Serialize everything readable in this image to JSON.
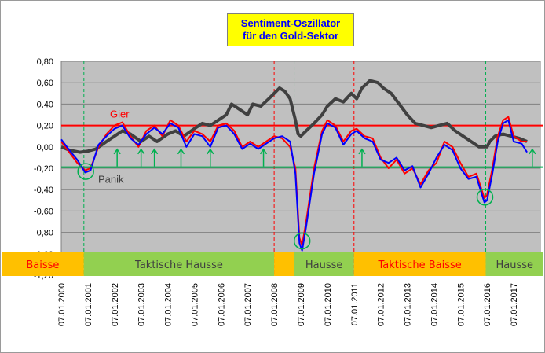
{
  "chart_data": {
    "type": "line",
    "title_lines": [
      "Sentiment-Oszillator",
      "für den Gold-Sektor"
    ],
    "y_ticks": [
      "0,80",
      "0,60",
      "0,40",
      "0,20",
      "0,00",
      "-0,20",
      "-0,40",
      "-0,60",
      "-0,80",
      "-1,00",
      "-1,20"
    ],
    "ylim": [
      -1.2,
      0.8
    ],
    "xlim": [
      2000.0,
      2018.0
    ],
    "x_tick_years": [
      2000,
      2001,
      2002,
      2003,
      2004,
      2005,
      2006,
      2007,
      2008,
      2009,
      2010,
      2011,
      2012,
      2013,
      2014,
      2015,
      2016,
      2017
    ],
    "x_ticks": [
      "07.01.2000",
      "07.01.2001",
      "07.01.2002",
      "07.01.2003",
      "07.01.2004",
      "07.01.2005",
      "07.01.2006",
      "07.01.2007",
      "07.01.2008",
      "07.01.2009",
      "07.01.2010",
      "07.01.2011",
      "07.01.2012",
      "07.01.2013",
      "07.01.2014",
      "07.01.2015",
      "07.01.2016",
      "07.01.2017"
    ],
    "grid": "horizontal",
    "reference_lines": [
      {
        "label": "Gier",
        "value": 0.2,
        "color": "#ff0000"
      },
      {
        "label": "Panik",
        "value": -0.19,
        "color": "#00b050"
      }
    ],
    "series": [
      {
        "color": "#404040",
        "points": [
          [
            2000.0,
            0.0
          ],
          [
            2000.3,
            -0.03
          ],
          [
            2000.7,
            -0.05
          ],
          [
            2001.0,
            -0.04
          ],
          [
            2001.3,
            -0.02
          ],
          [
            2001.7,
            0.05
          ],
          [
            2002.0,
            0.1
          ],
          [
            2002.3,
            0.15
          ],
          [
            2002.6,
            0.12
          ],
          [
            2003.0,
            0.05
          ],
          [
            2003.3,
            0.1
          ],
          [
            2003.6,
            0.05
          ],
          [
            2004.0,
            0.12
          ],
          [
            2004.3,
            0.15
          ],
          [
            2004.6,
            0.1
          ],
          [
            2005.0,
            0.17
          ],
          [
            2005.3,
            0.22
          ],
          [
            2005.6,
            0.2
          ],
          [
            2005.9,
            0.25
          ],
          [
            2006.2,
            0.3
          ],
          [
            2006.4,
            0.4
          ],
          [
            2006.7,
            0.35
          ],
          [
            2007.0,
            0.3
          ],
          [
            2007.2,
            0.4
          ],
          [
            2007.5,
            0.38
          ],
          [
            2007.8,
            0.45
          ],
          [
            2008.0,
            0.5
          ],
          [
            2008.2,
            0.55
          ],
          [
            2008.4,
            0.52
          ],
          [
            2008.6,
            0.45
          ],
          [
            2008.8,
            0.25
          ],
          [
            2008.9,
            0.12
          ],
          [
            2009.0,
            0.1
          ],
          [
            2009.2,
            0.15
          ],
          [
            2009.5,
            0.22
          ],
          [
            2009.8,
            0.3
          ],
          [
            2010.0,
            0.38
          ],
          [
            2010.3,
            0.45
          ],
          [
            2010.6,
            0.42
          ],
          [
            2010.9,
            0.5
          ],
          [
            2011.1,
            0.45
          ],
          [
            2011.3,
            0.55
          ],
          [
            2011.6,
            0.62
          ],
          [
            2011.9,
            0.6
          ],
          [
            2012.1,
            0.55
          ],
          [
            2012.4,
            0.5
          ],
          [
            2012.7,
            0.4
          ],
          [
            2013.0,
            0.3
          ],
          [
            2013.3,
            0.22
          ],
          [
            2013.6,
            0.2
          ],
          [
            2013.9,
            0.18
          ],
          [
            2014.2,
            0.2
          ],
          [
            2014.5,
            0.22
          ],
          [
            2014.8,
            0.15
          ],
          [
            2015.1,
            0.1
          ],
          [
            2015.4,
            0.05
          ],
          [
            2015.7,
            0.0
          ],
          [
            2016.0,
            0.0
          ],
          [
            2016.1,
            0.05
          ],
          [
            2016.3,
            0.1
          ],
          [
            2016.6,
            0.12
          ],
          [
            2016.9,
            0.1
          ],
          [
            2017.2,
            0.08
          ],
          [
            2017.5,
            0.05
          ]
        ]
      },
      {
        "color": "#ff0000",
        "points": [
          [
            2000.0,
            0.05
          ],
          [
            2000.3,
            -0.05
          ],
          [
            2000.6,
            -0.15
          ],
          [
            2000.9,
            -0.22
          ],
          [
            2001.1,
            -0.2
          ],
          [
            2001.4,
            0.0
          ],
          [
            2001.7,
            0.12
          ],
          [
            2002.0,
            0.2
          ],
          [
            2002.3,
            0.23
          ],
          [
            2002.6,
            0.1
          ],
          [
            2002.9,
            0.0
          ],
          [
            2003.2,
            0.15
          ],
          [
            2003.5,
            0.2
          ],
          [
            2003.8,
            0.1
          ],
          [
            2004.1,
            0.25
          ],
          [
            2004.4,
            0.2
          ],
          [
            2004.7,
            0.05
          ],
          [
            2005.0,
            0.15
          ],
          [
            2005.3,
            0.12
          ],
          [
            2005.6,
            0.05
          ],
          [
            2005.9,
            0.2
          ],
          [
            2006.2,
            0.22
          ],
          [
            2006.5,
            0.15
          ],
          [
            2006.8,
            0.0
          ],
          [
            2007.1,
            0.05
          ],
          [
            2007.4,
            0.0
          ],
          [
            2007.7,
            0.05
          ],
          [
            2008.0,
            0.1
          ],
          [
            2008.3,
            0.08
          ],
          [
            2008.6,
            0.0
          ],
          [
            2008.8,
            -0.2
          ],
          [
            2008.95,
            -0.85
          ],
          [
            2009.05,
            -0.92
          ],
          [
            2009.2,
            -0.7
          ],
          [
            2009.5,
            -0.2
          ],
          [
            2009.8,
            0.15
          ],
          [
            2010.0,
            0.25
          ],
          [
            2010.3,
            0.2
          ],
          [
            2010.6,
            0.05
          ],
          [
            2010.9,
            0.15
          ],
          [
            2011.1,
            0.17
          ],
          [
            2011.4,
            0.1
          ],
          [
            2011.7,
            0.08
          ],
          [
            2012.0,
            -0.1
          ],
          [
            2012.3,
            -0.2
          ],
          [
            2012.6,
            -0.12
          ],
          [
            2012.9,
            -0.25
          ],
          [
            2013.2,
            -0.2
          ],
          [
            2013.5,
            -0.35
          ],
          [
            2013.8,
            -0.22
          ],
          [
            2014.1,
            -0.15
          ],
          [
            2014.4,
            0.05
          ],
          [
            2014.7,
            0.0
          ],
          [
            2015.0,
            -0.15
          ],
          [
            2015.3,
            -0.28
          ],
          [
            2015.6,
            -0.25
          ],
          [
            2015.9,
            -0.48
          ],
          [
            2016.0,
            -0.45
          ],
          [
            2016.2,
            -0.2
          ],
          [
            2016.4,
            0.1
          ],
          [
            2016.6,
            0.25
          ],
          [
            2016.8,
            0.28
          ],
          [
            2017.0,
            0.1
          ],
          [
            2017.3,
            0.05
          ],
          [
            2017.5,
            0.05
          ]
        ]
      },
      {
        "color": "#0000ff",
        "points": [
          [
            2000.0,
            0.07
          ],
          [
            2000.3,
            -0.03
          ],
          [
            2000.6,
            -0.12
          ],
          [
            2000.9,
            -0.24
          ],
          [
            2001.1,
            -0.22
          ],
          [
            2001.4,
            0.02
          ],
          [
            2001.7,
            0.1
          ],
          [
            2002.0,
            0.17
          ],
          [
            2002.3,
            0.2
          ],
          [
            2002.6,
            0.08
          ],
          [
            2002.9,
            0.02
          ],
          [
            2003.2,
            0.12
          ],
          [
            2003.5,
            0.18
          ],
          [
            2003.8,
            0.12
          ],
          [
            2004.1,
            0.22
          ],
          [
            2004.4,
            0.18
          ],
          [
            2004.7,
            0.0
          ],
          [
            2005.0,
            0.12
          ],
          [
            2005.3,
            0.1
          ],
          [
            2005.6,
            0.0
          ],
          [
            2005.9,
            0.18
          ],
          [
            2006.2,
            0.2
          ],
          [
            2006.5,
            0.12
          ],
          [
            2006.8,
            -0.02
          ],
          [
            2007.1,
            0.03
          ],
          [
            2007.4,
            -0.02
          ],
          [
            2007.7,
            0.03
          ],
          [
            2008.0,
            0.08
          ],
          [
            2008.3,
            0.1
          ],
          [
            2008.6,
            0.05
          ],
          [
            2008.8,
            -0.25
          ],
          [
            2008.95,
            -0.9
          ],
          [
            2009.05,
            -0.97
          ],
          [
            2009.2,
            -0.75
          ],
          [
            2009.5,
            -0.25
          ],
          [
            2009.8,
            0.12
          ],
          [
            2010.0,
            0.22
          ],
          [
            2010.3,
            0.18
          ],
          [
            2010.6,
            0.02
          ],
          [
            2010.9,
            0.12
          ],
          [
            2011.1,
            0.15
          ],
          [
            2011.4,
            0.08
          ],
          [
            2011.7,
            0.05
          ],
          [
            2012.0,
            -0.12
          ],
          [
            2012.3,
            -0.15
          ],
          [
            2012.6,
            -0.1
          ],
          [
            2012.9,
            -0.22
          ],
          [
            2013.2,
            -0.18
          ],
          [
            2013.5,
            -0.38
          ],
          [
            2013.8,
            -0.25
          ],
          [
            2014.1,
            -0.1
          ],
          [
            2014.4,
            0.02
          ],
          [
            2014.7,
            -0.03
          ],
          [
            2015.0,
            -0.2
          ],
          [
            2015.3,
            -0.3
          ],
          [
            2015.6,
            -0.28
          ],
          [
            2015.9,
            -0.52
          ],
          [
            2016.0,
            -0.5
          ],
          [
            2016.2,
            -0.25
          ],
          [
            2016.4,
            0.05
          ],
          [
            2016.6,
            0.22
          ],
          [
            2016.8,
            0.25
          ],
          [
            2017.0,
            0.05
          ],
          [
            2017.3,
            0.03
          ],
          [
            2017.5,
            -0.05
          ]
        ]
      }
    ],
    "vertical_markers": [
      {
        "x": 2000.85,
        "color": "#00b050"
      },
      {
        "x": 2008.0,
        "color": "#ff0000"
      },
      {
        "x": 2008.75,
        "color": "#00b050"
      },
      {
        "x": 2011.0,
        "color": "#ff0000"
      },
      {
        "x": 2015.95,
        "color": "#00b050"
      }
    ],
    "panic_circles": [
      {
        "x": 2000.92,
        "y": -0.23
      },
      {
        "x": 2009.05,
        "y": -0.88
      },
      {
        "x": 2015.92,
        "y": -0.47
      }
    ],
    "buy_arrows": [
      2002.1,
      2003.0,
      2003.5,
      2004.5,
      2005.6,
      2007.6,
      2011.3,
      2017.7
    ],
    "phases": [
      {
        "label": "Baisse",
        "from": 2000.0,
        "to": 2000.85,
        "bg": "#ffc000",
        "fg": "#ff0000"
      },
      {
        "label": "Taktische Hausse",
        "from": 2000.85,
        "to": 2008.0,
        "bg": "#92d050",
        "fg": "#404040"
      },
      {
        "label": "",
        "from": 2008.0,
        "to": 2008.75,
        "bg": "#ffc000",
        "fg": "#ff0000"
      },
      {
        "label": "Hausse",
        "from": 2008.75,
        "to": 2011.0,
        "bg": "#92d050",
        "fg": "#404040"
      },
      {
        "label": "Taktische Baisse",
        "from": 2011.0,
        "to": 2015.95,
        "bg": "#ffc000",
        "fg": "#ff0000"
      },
      {
        "label": "Hausse",
        "from": 2015.95,
        "to": 2018.0,
        "bg": "#92d050",
        "fg": "#404040"
      }
    ]
  }
}
